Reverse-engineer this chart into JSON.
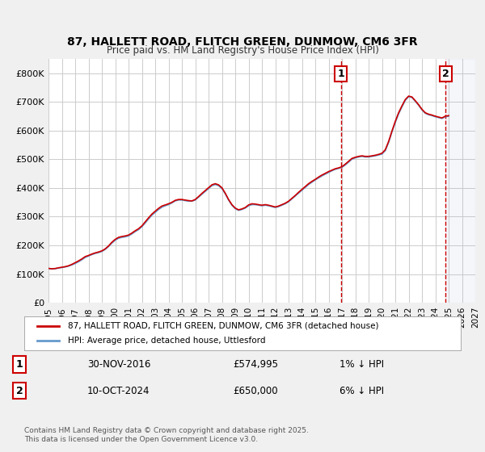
{
  "title": "87, HALLETT ROAD, FLITCH GREEN, DUNMOW, CM6 3FR",
  "subtitle": "Price paid vs. HM Land Registry's House Price Index (HPI)",
  "background_color": "#f0f0f0",
  "plot_background": "#ffffff",
  "grid_color": "#cccccc",
  "xlim": [
    1995.0,
    2027.0
  ],
  "ylim": [
    0,
    850000
  ],
  "yticks": [
    0,
    100000,
    200000,
    300000,
    400000,
    500000,
    600000,
    700000,
    800000
  ],
  "ytick_labels": [
    "£0",
    "£100K",
    "£200K",
    "£300K",
    "£400K",
    "£500K",
    "£600K",
    "£700K",
    "£800K"
  ],
  "xticks": [
    1995,
    1996,
    1997,
    1998,
    1999,
    2000,
    2001,
    2002,
    2003,
    2004,
    2005,
    2006,
    2007,
    2008,
    2009,
    2010,
    2011,
    2012,
    2013,
    2014,
    2015,
    2016,
    2017,
    2018,
    2019,
    2020,
    2021,
    2022,
    2023,
    2024,
    2025,
    2026,
    2027
  ],
  "red_line_color": "#cc0000",
  "blue_line_color": "#6699cc",
  "marker1_x": 2016.92,
  "marker1_y": 574995,
  "marker2_x": 2024.78,
  "marker2_y": 650000,
  "marker1_date": "30-NOV-2016",
  "marker1_price": "£574,995",
  "marker1_hpi": "1% ↓ HPI",
  "marker2_date": "10-OCT-2024",
  "marker2_price": "£650,000",
  "marker2_hpi": "6% ↓ HPI",
  "legend_label1": "87, HALLETT ROAD, FLITCH GREEN, DUNMOW, CM6 3FR (detached house)",
  "legend_label2": "HPI: Average price, detached house, Uttlesford",
  "footer": "Contains HM Land Registry data © Crown copyright and database right 2025.\nThis data is licensed under the Open Government Licence v3.0.",
  "hpi_data_x": [
    1995.0,
    1995.25,
    1995.5,
    1995.75,
    1996.0,
    1996.25,
    1996.5,
    1996.75,
    1997.0,
    1997.25,
    1997.5,
    1997.75,
    1998.0,
    1998.25,
    1998.5,
    1998.75,
    1999.0,
    1999.25,
    1999.5,
    1999.75,
    2000.0,
    2000.25,
    2000.5,
    2000.75,
    2001.0,
    2001.25,
    2001.5,
    2001.75,
    2002.0,
    2002.25,
    2002.5,
    2002.75,
    2003.0,
    2003.25,
    2003.5,
    2003.75,
    2004.0,
    2004.25,
    2004.5,
    2004.75,
    2005.0,
    2005.25,
    2005.5,
    2005.75,
    2006.0,
    2006.25,
    2006.5,
    2006.75,
    2007.0,
    2007.25,
    2007.5,
    2007.75,
    2008.0,
    2008.25,
    2008.5,
    2008.75,
    2009.0,
    2009.25,
    2009.5,
    2009.75,
    2010.0,
    2010.25,
    2010.5,
    2010.75,
    2011.0,
    2011.25,
    2011.5,
    2011.75,
    2012.0,
    2012.25,
    2012.5,
    2012.75,
    2013.0,
    2013.25,
    2013.5,
    2013.75,
    2014.0,
    2014.25,
    2014.5,
    2014.75,
    2015.0,
    2015.25,
    2015.5,
    2015.75,
    2016.0,
    2016.25,
    2016.5,
    2016.75,
    2017.0,
    2017.25,
    2017.5,
    2017.75,
    2018.0,
    2018.25,
    2018.5,
    2018.75,
    2019.0,
    2019.25,
    2019.5,
    2019.75,
    2020.0,
    2020.25,
    2020.5,
    2020.75,
    2021.0,
    2021.25,
    2021.5,
    2021.75,
    2022.0,
    2022.25,
    2022.5,
    2022.75,
    2023.0,
    2023.25,
    2023.5,
    2023.75,
    2024.0,
    2024.25,
    2024.5,
    2024.75,
    2025.0
  ],
  "hpi_data_y": [
    120000,
    118000,
    119000,
    121000,
    123000,
    125000,
    128000,
    132000,
    137000,
    143000,
    150000,
    158000,
    163000,
    168000,
    172000,
    175000,
    179000,
    186000,
    196000,
    208000,
    218000,
    225000,
    228000,
    230000,
    233000,
    240000,
    248000,
    255000,
    265000,
    278000,
    292000,
    305000,
    315000,
    325000,
    333000,
    338000,
    342000,
    348000,
    355000,
    358000,
    358000,
    356000,
    354000,
    354000,
    358000,
    368000,
    378000,
    388000,
    398000,
    408000,
    412000,
    408000,
    398000,
    380000,
    358000,
    340000,
    328000,
    322000,
    325000,
    330000,
    338000,
    342000,
    342000,
    340000,
    338000,
    340000,
    338000,
    335000,
    332000,
    335000,
    340000,
    345000,
    352000,
    362000,
    372000,
    382000,
    392000,
    402000,
    412000,
    420000,
    428000,
    435000,
    442000,
    448000,
    454000,
    460000,
    465000,
    468000,
    472000,
    480000,
    490000,
    500000,
    505000,
    508000,
    510000,
    508000,
    508000,
    510000,
    512000,
    515000,
    518000,
    530000,
    558000,
    595000,
    628000,
    658000,
    682000,
    705000,
    718000,
    715000,
    702000,
    688000,
    672000,
    660000,
    655000,
    652000,
    648000,
    645000,
    642000,
    648000,
    650000
  ],
  "red_line_x": [
    1995.0,
    1995.25,
    1995.5,
    1995.75,
    1996.0,
    1996.25,
    1996.5,
    1996.75,
    1997.0,
    1997.25,
    1997.5,
    1997.75,
    1998.0,
    1998.25,
    1998.5,
    1998.75,
    1999.0,
    1999.25,
    1999.5,
    1999.75,
    2000.0,
    2000.25,
    2000.5,
    2000.75,
    2001.0,
    2001.25,
    2001.5,
    2001.75,
    2002.0,
    2002.25,
    2002.5,
    2002.75,
    2003.0,
    2003.25,
    2003.5,
    2003.75,
    2004.0,
    2004.25,
    2004.5,
    2004.75,
    2005.0,
    2005.25,
    2005.5,
    2005.75,
    2006.0,
    2006.25,
    2006.5,
    2006.75,
    2007.0,
    2007.25,
    2007.5,
    2007.75,
    2008.0,
    2008.25,
    2008.5,
    2008.75,
    2009.0,
    2009.25,
    2009.5,
    2009.75,
    2010.0,
    2010.25,
    2010.5,
    2010.75,
    2011.0,
    2011.25,
    2011.5,
    2011.75,
    2012.0,
    2012.25,
    2012.5,
    2012.75,
    2013.0,
    2013.25,
    2013.5,
    2013.75,
    2014.0,
    2014.25,
    2014.5,
    2014.75,
    2015.0,
    2015.25,
    2015.5,
    2015.75,
    2016.0,
    2016.25,
    2016.5,
    2016.75,
    2017.0,
    2017.25,
    2017.5,
    2017.75,
    2018.0,
    2018.25,
    2018.5,
    2018.75,
    2019.0,
    2019.25,
    2019.5,
    2019.75,
    2020.0,
    2020.25,
    2020.5,
    2020.75,
    2021.0,
    2021.25,
    2021.5,
    2021.75,
    2022.0,
    2022.25,
    2022.5,
    2022.75,
    2023.0,
    2023.25,
    2023.5,
    2023.75,
    2024.0,
    2024.25,
    2024.5,
    2024.75,
    2025.0
  ],
  "red_line_y": [
    120000,
    118500,
    119500,
    122000,
    124000,
    126000,
    129000,
    134000,
    140000,
    146000,
    153000,
    161000,
    165000,
    170000,
    174000,
    177000,
    181000,
    188000,
    198000,
    211000,
    221000,
    228000,
    231000,
    233000,
    236000,
    243000,
    251000,
    258000,
    268000,
    282000,
    296000,
    309000,
    319000,
    329000,
    337000,
    341000,
    345000,
    350000,
    357000,
    360000,
    360000,
    358000,
    356000,
    355000,
    360000,
    370000,
    381000,
    391000,
    401000,
    411000,
    415000,
    411000,
    401000,
    382000,
    360000,
    342000,
    330000,
    324000,
    327000,
    332000,
    341000,
    345000,
    344000,
    342000,
    340000,
    342000,
    340000,
    337000,
    334000,
    337000,
    342000,
    347000,
    354000,
    364000,
    374000,
    385000,
    395000,
    405000,
    415000,
    423000,
    430000,
    438000,
    445000,
    451000,
    457000,
    462000,
    467000,
    470000,
    474000,
    483000,
    493000,
    503000,
    507000,
    510000,
    512000,
    510000,
    510000,
    512000,
    514000,
    517000,
    521000,
    533000,
    562000,
    598000,
    632000,
    662000,
    686000,
    708000,
    720000,
    717000,
    704000,
    690000,
    674000,
    662000,
    657000,
    654000,
    650000,
    647000,
    644000,
    650000,
    652000
  ]
}
